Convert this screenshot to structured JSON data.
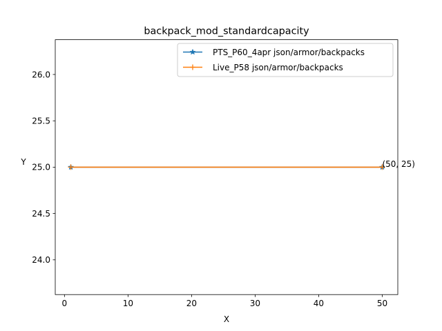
{
  "chart_data": {
    "type": "line",
    "title": "backpack_mod_standardcapacity",
    "xlabel": "X",
    "ylabel": "Y",
    "xlim": [
      -1.45,
      52.45
    ],
    "ylim": [
      23.625,
      26.375
    ],
    "xticks": [
      {
        "value": 0,
        "label": "0"
      },
      {
        "value": 10,
        "label": "10"
      },
      {
        "value": 20,
        "label": "20"
      },
      {
        "value": 30,
        "label": "30"
      },
      {
        "value": 40,
        "label": "40"
      },
      {
        "value": 50,
        "label": "50"
      }
    ],
    "yticks": [
      {
        "value": 24.0,
        "label": "24.0"
      },
      {
        "value": 24.5,
        "label": "24.5"
      },
      {
        "value": 25.0,
        "label": "25.0"
      },
      {
        "value": 25.5,
        "label": "25.5"
      },
      {
        "value": 26.0,
        "label": "26.0"
      }
    ],
    "series": [
      {
        "name": "PTS_P60_4apr json/armor/backpacks",
        "color": "#1f77b4",
        "marker": "star",
        "x": [
          1,
          50
        ],
        "y": [
          25,
          25
        ]
      },
      {
        "name": "Live_P58 json/armor/backpacks",
        "color": "#ff7f0e",
        "marker": "plus",
        "x": [
          1,
          50
        ],
        "y": [
          25,
          25
        ]
      }
    ],
    "annotations": [
      {
        "text": "(50, 25)",
        "x": 50,
        "y": 25
      }
    ],
    "legend_position": "top-right",
    "grid": false
  }
}
